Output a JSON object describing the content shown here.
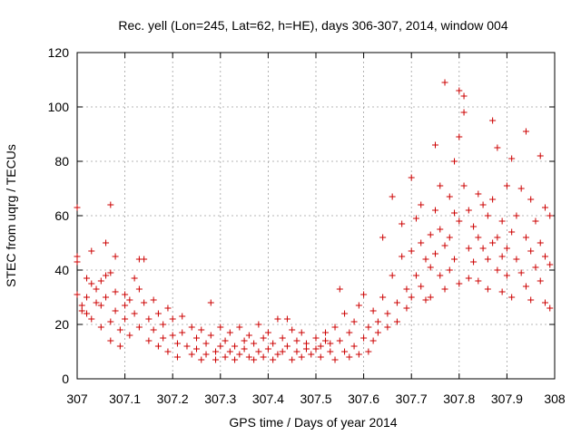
{
  "chart_data": {
    "type": "scatter",
    "title": "Rec. yell (Lon=245, Lat=62, h=HE), days 306-307, 2014, window 004",
    "xlabel": "GPS time / Days of year 2014",
    "ylabel": "STEC from uqrg / TECUs",
    "xlim": [
      307,
      308
    ],
    "ylim": [
      0,
      120
    ],
    "grid": true,
    "marker": "plus",
    "color": "#cc0000",
    "x_ticks": [
      "307",
      "307.1",
      "307.2",
      "307.3",
      "307.4",
      "307.5",
      "307.6",
      "307.7",
      "307.8",
      "307.9",
      "308"
    ],
    "y_ticks": [
      "0",
      "20",
      "40",
      "60",
      "80",
      "100",
      "120"
    ],
    "series": [
      {
        "points": [
          [
            307.0,
            63
          ],
          [
            307.0,
            45
          ],
          [
            307.0,
            43
          ],
          [
            307.0,
            31
          ],
          [
            307.01,
            27
          ],
          [
            307.01,
            25
          ],
          [
            307.02,
            37
          ],
          [
            307.02,
            30
          ],
          [
            307.02,
            24
          ],
          [
            307.03,
            47
          ],
          [
            307.03,
            35
          ],
          [
            307.03,
            22
          ],
          [
            307.04,
            33
          ],
          [
            307.04,
            28
          ],
          [
            307.05,
            36
          ],
          [
            307.05,
            27
          ],
          [
            307.05,
            19
          ],
          [
            307.06,
            50
          ],
          [
            307.06,
            38
          ],
          [
            307.06,
            30
          ],
          [
            307.07,
            64
          ],
          [
            307.07,
            39
          ],
          [
            307.07,
            21
          ],
          [
            307.07,
            14
          ],
          [
            307.08,
            45
          ],
          [
            307.08,
            32
          ],
          [
            307.08,
            25
          ],
          [
            307.09,
            12
          ],
          [
            307.09,
            18
          ],
          [
            307.1,
            31
          ],
          [
            307.1,
            27
          ],
          [
            307.1,
            22
          ],
          [
            307.11,
            29
          ],
          [
            307.11,
            16
          ],
          [
            307.12,
            37
          ],
          [
            307.12,
            24
          ],
          [
            307.13,
            44
          ],
          [
            307.13,
            33
          ],
          [
            307.13,
            19
          ],
          [
            307.14,
            44
          ],
          [
            307.14,
            28
          ],
          [
            307.15,
            22
          ],
          [
            307.15,
            14
          ],
          [
            307.16,
            29
          ],
          [
            307.16,
            18
          ],
          [
            307.17,
            24
          ],
          [
            307.17,
            12
          ],
          [
            307.18,
            20
          ],
          [
            307.18,
            15
          ],
          [
            307.19,
            26
          ],
          [
            307.19,
            10
          ],
          [
            307.2,
            22
          ],
          [
            307.2,
            16
          ],
          [
            307.21,
            13
          ],
          [
            307.21,
            8
          ],
          [
            307.22,
            23
          ],
          [
            307.22,
            17
          ],
          [
            307.23,
            12
          ],
          [
            307.24,
            19
          ],
          [
            307.24,
            9
          ],
          [
            307.25,
            15
          ],
          [
            307.25,
            11
          ],
          [
            307.26,
            18
          ],
          [
            307.26,
            7
          ],
          [
            307.27,
            13
          ],
          [
            307.27,
            9
          ],
          [
            307.28,
            28
          ],
          [
            307.28,
            16
          ],
          [
            307.29,
            10
          ],
          [
            307.29,
            7
          ],
          [
            307.3,
            12
          ],
          [
            307.3,
            19
          ],
          [
            307.31,
            8
          ],
          [
            307.31,
            14
          ],
          [
            307.32,
            17
          ],
          [
            307.32,
            10
          ],
          [
            307.33,
            7
          ],
          [
            307.33,
            12
          ],
          [
            307.34,
            19
          ],
          [
            307.34,
            9
          ],
          [
            307.35,
            14
          ],
          [
            307.35,
            11
          ],
          [
            307.36,
            8
          ],
          [
            307.36,
            16
          ],
          [
            307.37,
            13
          ],
          [
            307.37,
            7
          ],
          [
            307.38,
            20
          ],
          [
            307.38,
            10
          ],
          [
            307.39,
            15
          ],
          [
            307.39,
            8
          ],
          [
            307.4,
            11
          ],
          [
            307.4,
            17
          ],
          [
            307.41,
            13
          ],
          [
            307.41,
            7
          ],
          [
            307.42,
            22
          ],
          [
            307.42,
            9
          ],
          [
            307.43,
            15
          ],
          [
            307.43,
            10
          ],
          [
            307.44,
            22
          ],
          [
            307.44,
            12
          ],
          [
            307.45,
            7
          ],
          [
            307.45,
            18
          ],
          [
            307.46,
            10
          ],
          [
            307.46,
            14
          ],
          [
            307.47,
            8
          ],
          [
            307.47,
            17
          ],
          [
            307.48,
            11
          ],
          [
            307.48,
            13
          ],
          [
            307.49,
            9
          ],
          [
            307.5,
            15
          ],
          [
            307.5,
            11
          ],
          [
            307.51,
            12
          ],
          [
            307.51,
            8
          ],
          [
            307.52,
            17
          ],
          [
            307.52,
            14
          ],
          [
            307.53,
            10
          ],
          [
            307.53,
            13
          ],
          [
            307.54,
            7
          ],
          [
            307.54,
            19
          ],
          [
            307.55,
            33
          ],
          [
            307.55,
            14
          ],
          [
            307.56,
            10
          ],
          [
            307.56,
            24
          ],
          [
            307.57,
            8
          ],
          [
            307.57,
            17
          ],
          [
            307.58,
            21
          ],
          [
            307.58,
            12
          ],
          [
            307.59,
            27
          ],
          [
            307.59,
            9
          ],
          [
            307.6,
            31
          ],
          [
            307.6,
            15
          ],
          [
            307.61,
            19
          ],
          [
            307.61,
            10
          ],
          [
            307.62,
            25
          ],
          [
            307.62,
            14
          ],
          [
            307.63,
            21
          ],
          [
            307.63,
            17
          ],
          [
            307.64,
            30
          ],
          [
            307.64,
            52
          ],
          [
            307.65,
            19
          ],
          [
            307.65,
            24
          ],
          [
            307.66,
            38
          ],
          [
            307.66,
            67
          ],
          [
            307.67,
            28
          ],
          [
            307.67,
            21
          ],
          [
            307.68,
            45
          ],
          [
            307.68,
            57
          ],
          [
            307.69,
            33
          ],
          [
            307.69,
            26
          ],
          [
            307.7,
            74
          ],
          [
            307.7,
            47
          ],
          [
            307.7,
            30
          ],
          [
            307.71,
            59
          ],
          [
            307.71,
            38
          ],
          [
            307.72,
            64
          ],
          [
            307.72,
            50
          ],
          [
            307.72,
            34
          ],
          [
            307.73,
            44
          ],
          [
            307.73,
            29
          ],
          [
            307.74,
            53
          ],
          [
            307.74,
            41
          ],
          [
            307.74,
            30
          ],
          [
            307.75,
            86
          ],
          [
            307.75,
            62
          ],
          [
            307.75,
            46
          ],
          [
            307.76,
            71
          ],
          [
            307.76,
            55
          ],
          [
            307.76,
            38
          ],
          [
            307.77,
            109
          ],
          [
            307.77,
            49
          ],
          [
            307.77,
            33
          ],
          [
            307.78,
            67
          ],
          [
            307.78,
            52
          ],
          [
            307.78,
            40
          ],
          [
            307.79,
            80
          ],
          [
            307.79,
            61
          ],
          [
            307.79,
            44
          ],
          [
            307.8,
            106
          ],
          [
            307.8,
            89
          ],
          [
            307.8,
            58
          ],
          [
            307.8,
            35
          ],
          [
            307.81,
            104
          ],
          [
            307.81,
            98
          ],
          [
            307.81,
            71
          ],
          [
            307.82,
            62
          ],
          [
            307.82,
            48
          ],
          [
            307.82,
            37
          ],
          [
            307.83,
            56
          ],
          [
            307.83,
            43
          ],
          [
            307.84,
            68
          ],
          [
            307.84,
            52
          ],
          [
            307.84,
            36
          ],
          [
            307.85,
            64
          ],
          [
            307.85,
            48
          ],
          [
            307.86,
            60
          ],
          [
            307.86,
            44
          ],
          [
            307.86,
            33
          ],
          [
            307.87,
            95
          ],
          [
            307.87,
            66
          ],
          [
            307.87,
            50
          ],
          [
            307.88,
            85
          ],
          [
            307.88,
            52
          ],
          [
            307.88,
            40
          ],
          [
            307.89,
            58
          ],
          [
            307.89,
            45
          ],
          [
            307.89,
            32
          ],
          [
            307.9,
            71
          ],
          [
            307.9,
            48
          ],
          [
            307.9,
            38
          ],
          [
            307.91,
            81
          ],
          [
            307.91,
            54
          ],
          [
            307.91,
            30
          ],
          [
            307.92,
            60
          ],
          [
            307.92,
            44
          ],
          [
            307.93,
            70
          ],
          [
            307.93,
            39
          ],
          [
            307.94,
            91
          ],
          [
            307.94,
            52
          ],
          [
            307.94,
            34
          ],
          [
            307.95,
            66
          ],
          [
            307.95,
            47
          ],
          [
            307.95,
            29
          ],
          [
            307.96,
            58
          ],
          [
            307.96,
            41
          ],
          [
            307.97,
            82
          ],
          [
            307.97,
            50
          ],
          [
            307.97,
            36
          ],
          [
            307.98,
            63
          ],
          [
            307.98,
            45
          ],
          [
            307.98,
            28
          ],
          [
            307.99,
            60
          ],
          [
            307.99,
            42
          ],
          [
            307.99,
            26
          ]
        ]
      }
    ]
  }
}
